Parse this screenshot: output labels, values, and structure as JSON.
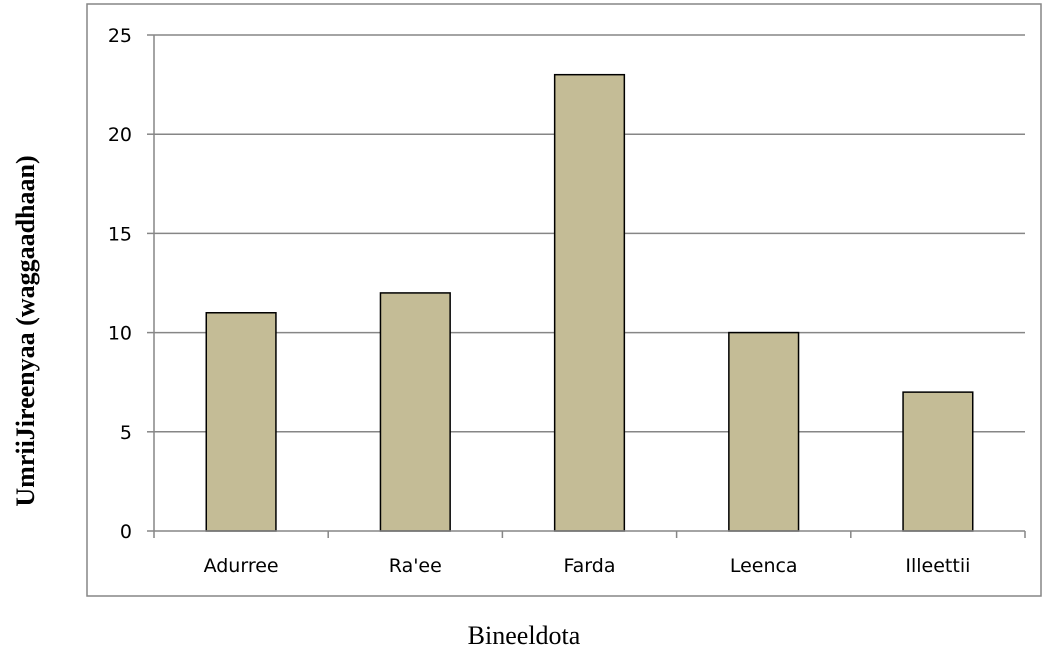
{
  "chart_data": {
    "type": "bar",
    "title": "",
    "xlabel": "Bineeldota",
    "ylabel": "UmriiJireenyaa (waggaadhaan)",
    "categories": [
      "Adurree",
      "Ra'ee",
      "Farda",
      "Leenca",
      "Illeettii"
    ],
    "values": [
      11,
      12,
      23,
      10,
      7
    ],
    "ylim": [
      0,
      25
    ],
    "yticks": [
      "0",
      "5",
      "10",
      "15",
      "20",
      "25"
    ],
    "grid": true,
    "legend": "none",
    "bar_color": "#c4bc96",
    "bar_stroke": "#000000",
    "grid_color": "#868686"
  }
}
